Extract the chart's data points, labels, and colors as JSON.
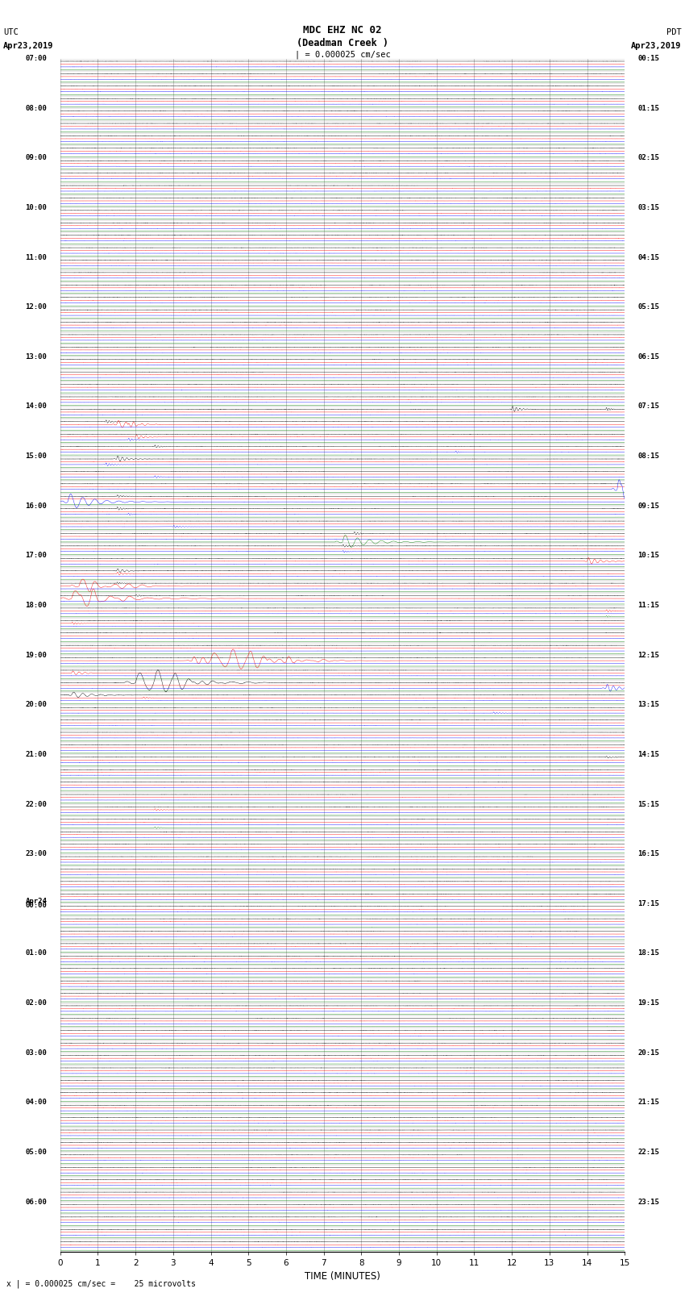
{
  "title_line1": "MDC EHZ NC 02",
  "title_line2": "(Deadman Creek )",
  "title_line3": "| = 0.000025 cm/sec",
  "label_utc": "UTC",
  "label_pdt": "PDT",
  "label_date_left": "Apr23,2019",
  "label_date_right": "Apr23,2019",
  "xlabel": "TIME (MINUTES)",
  "footer": "x | = 0.000025 cm/sec =    25 microvolts",
  "background_color": "#ffffff",
  "trace_colors": [
    "black",
    "red",
    "blue",
    "green"
  ],
  "num_rows": 96,
  "minutes": 15,
  "sps": 40,
  "noise_amps": [
    0.008,
    0.006,
    0.006,
    0.004
  ],
  "left_labels": [
    "07:00",
    "",
    "",
    "",
    "08:00",
    "",
    "",
    "",
    "09:00",
    "",
    "",
    "",
    "10:00",
    "",
    "",
    "",
    "11:00",
    "",
    "",
    "",
    "12:00",
    "",
    "",
    "",
    "13:00",
    "",
    "",
    "",
    "14:00",
    "",
    "",
    "",
    "15:00",
    "",
    "",
    "",
    "16:00",
    "",
    "",
    "",
    "17:00",
    "",
    "",
    "",
    "18:00",
    "",
    "",
    "",
    "19:00",
    "",
    "",
    "",
    "20:00",
    "",
    "",
    "",
    "21:00",
    "",
    "",
    "",
    "22:00",
    "",
    "",
    "",
    "23:00",
    "",
    "",
    "",
    "Apr24\n00:00",
    "",
    "",
    "",
    "01:00",
    "",
    "",
    "",
    "02:00",
    "",
    "",
    "",
    "03:00",
    "",
    "",
    "",
    "04:00",
    "",
    "",
    "",
    "05:00",
    "",
    "",
    "",
    "06:00",
    "",
    "",
    ""
  ],
  "right_labels": [
    "00:15",
    "",
    "",
    "",
    "01:15",
    "",
    "",
    "",
    "02:15",
    "",
    "",
    "",
    "03:15",
    "",
    "",
    "",
    "04:15",
    "",
    "",
    "",
    "05:15",
    "",
    "",
    "",
    "06:15",
    "",
    "",
    "",
    "07:15",
    "",
    "",
    "",
    "08:15",
    "",
    "",
    "",
    "09:15",
    "",
    "",
    "",
    "10:15",
    "",
    "",
    "",
    "11:15",
    "",
    "",
    "",
    "12:15",
    "",
    "",
    "",
    "13:15",
    "",
    "",
    "",
    "14:15",
    "",
    "",
    "",
    "15:15",
    "",
    "",
    "",
    "16:15",
    "",
    "",
    "",
    "17:15",
    "",
    "",
    "",
    "18:15",
    "",
    "",
    "",
    "19:15",
    "",
    "",
    "",
    "20:15",
    "",
    "",
    "",
    "21:15",
    "",
    "",
    "",
    "22:15",
    "",
    "",
    "",
    "23:15",
    "",
    "",
    ""
  ],
  "seismic_events": [
    [
      28,
      0,
      12.0,
      1.5,
      0.12
    ],
    [
      28,
      0,
      14.5,
      0.8,
      0.08
    ],
    [
      29,
      1,
      1.5,
      2.0,
      0.25
    ],
    [
      29,
      1,
      1.8,
      1.2,
      0.15
    ],
    [
      29,
      0,
      1.2,
      0.8,
      0.1
    ],
    [
      30,
      1,
      2.0,
      1.0,
      0.15
    ],
    [
      30,
      2,
      1.8,
      0.7,
      0.1
    ],
    [
      31,
      0,
      2.5,
      0.7,
      0.1
    ],
    [
      31,
      2,
      10.5,
      0.5,
      0.08
    ],
    [
      32,
      0,
      1.5,
      1.5,
      0.15
    ],
    [
      32,
      2,
      1.2,
      0.8,
      0.1
    ],
    [
      33,
      2,
      2.5,
      0.6,
      0.1
    ],
    [
      34,
      2,
      14.8,
      5.0,
      0.3
    ],
    [
      34,
      2,
      14.9,
      3.0,
      0.2
    ],
    [
      35,
      2,
      0.2,
      4.0,
      0.4
    ],
    [
      35,
      0,
      1.5,
      0.6,
      0.1
    ],
    [
      36,
      0,
      1.5,
      0.8,
      0.1
    ],
    [
      36,
      2,
      1.8,
      0.5,
      0.08
    ],
    [
      37,
      2,
      3.0,
      0.6,
      0.1
    ],
    [
      38,
      3,
      7.5,
      3.5,
      0.4
    ],
    [
      38,
      0,
      7.8,
      0.8,
      0.1
    ],
    [
      39,
      0,
      7.5,
      0.7,
      0.1
    ],
    [
      39,
      2,
      7.5,
      0.5,
      0.08
    ],
    [
      40,
      1,
      14.0,
      1.8,
      0.2
    ],
    [
      41,
      0,
      1.5,
      1.0,
      0.15
    ],
    [
      41,
      1,
      1.5,
      0.8,
      0.12
    ],
    [
      42,
      1,
      0.5,
      3.5,
      0.5
    ],
    [
      42,
      1,
      0.8,
      2.5,
      0.4
    ],
    [
      42,
      0,
      1.5,
      0.5,
      0.08
    ],
    [
      43,
      1,
      0.3,
      4.0,
      0.6
    ],
    [
      43,
      1,
      0.5,
      2.5,
      0.4
    ],
    [
      43,
      1,
      0.8,
      1.5,
      0.3
    ],
    [
      43,
      0,
      2.0,
      0.5,
      0.1
    ],
    [
      44,
      1,
      14.5,
      0.6,
      0.1
    ],
    [
      44,
      3,
      14.5,
      0.4,
      0.08
    ],
    [
      45,
      1,
      0.3,
      0.6,
      0.1
    ],
    [
      48,
      1,
      3.5,
      2.0,
      0.3
    ],
    [
      48,
      1,
      4.0,
      4.0,
      0.6
    ],
    [
      48,
      1,
      4.5,
      3.5,
      0.5
    ],
    [
      48,
      1,
      5.0,
      2.5,
      0.4
    ],
    [
      48,
      1,
      5.5,
      2.0,
      0.35
    ],
    [
      48,
      1,
      6.0,
      1.5,
      0.3
    ],
    [
      49,
      1,
      0.3,
      1.0,
      0.2
    ],
    [
      50,
      0,
      2.0,
      5.0,
      0.6
    ],
    [
      50,
      0,
      2.5,
      3.5,
      0.5
    ],
    [
      50,
      0,
      3.0,
      2.0,
      0.4
    ],
    [
      50,
      0,
      3.5,
      1.0,
      0.3
    ],
    [
      50,
      2,
      14.5,
      2.0,
      0.2
    ],
    [
      51,
      0,
      0.3,
      1.5,
      0.3
    ],
    [
      51,
      1,
      2.2,
      0.5,
      0.1
    ],
    [
      52,
      2,
      11.5,
      0.5,
      0.1
    ],
    [
      56,
      0,
      14.5,
      0.5,
      0.1
    ],
    [
      60,
      1,
      2.5,
      0.5,
      0.1
    ],
    [
      61,
      3,
      2.5,
      0.5,
      0.1
    ]
  ]
}
